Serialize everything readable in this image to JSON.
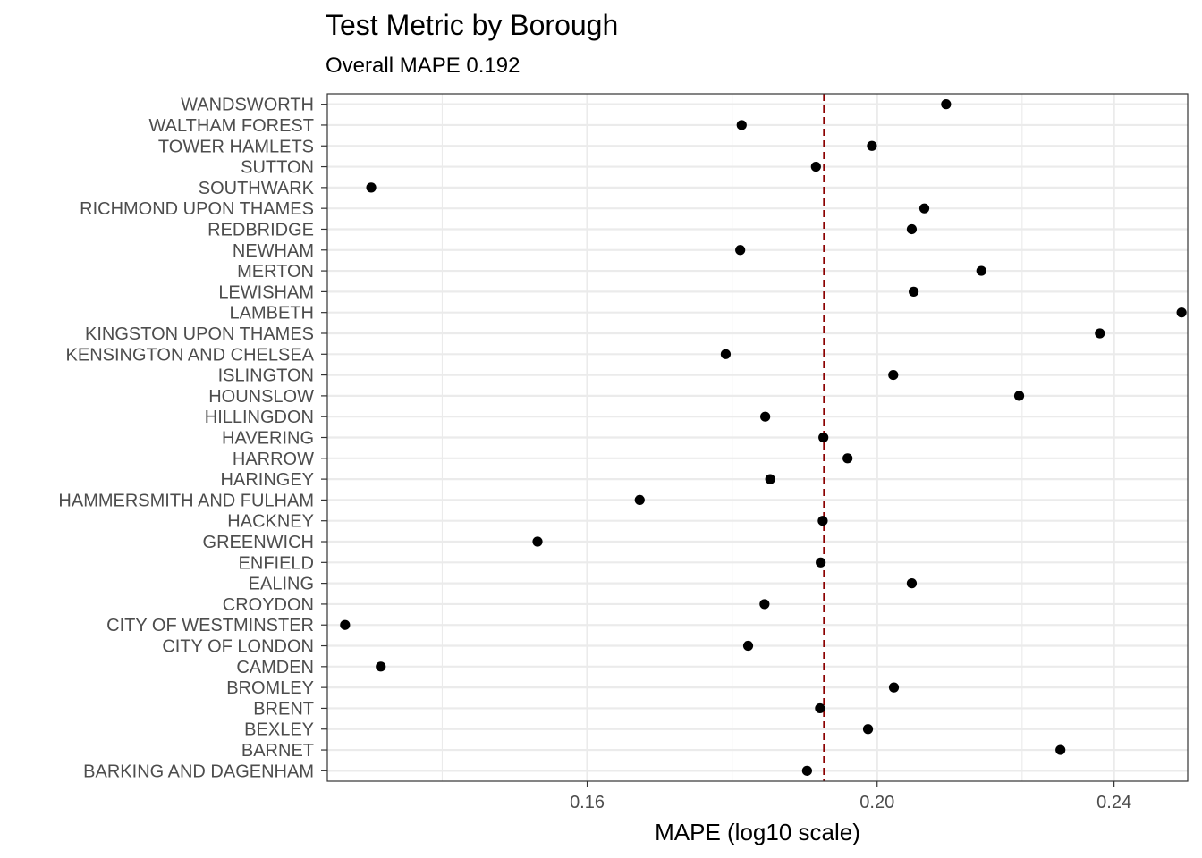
{
  "chart_data": {
    "type": "scatter",
    "title": "Test Metric by Borough",
    "subtitle": "Overall MAPE 0.192",
    "xlabel": "MAPE (log10 scale)",
    "ylabel": "",
    "x_scale": "log10",
    "xlim": [
      0.131,
      0.254
    ],
    "x_major_ticks": [
      0.16,
      0.2,
      0.24
    ],
    "x_tick_labels": [
      "0.16",
      "0.20",
      "0.24"
    ],
    "grid": true,
    "reference_line": {
      "value": 0.192,
      "style": "dashed",
      "color": "#8b0000"
    },
    "point_color": "#000000",
    "categories": [
      "BARKING AND DAGENHAM",
      "BARNET",
      "BEXLEY",
      "BRENT",
      "BROMLEY",
      "CAMDEN",
      "CITY OF LONDON",
      "CITY OF WESTMINSTER",
      "CROYDON",
      "EALING",
      "ENFIELD",
      "GREENWICH",
      "HACKNEY",
      "HAMMERSMITH AND FULHAM",
      "HARINGEY",
      "HARROW",
      "HAVERING",
      "HILLINGDON",
      "HOUNSLOW",
      "ISLINGTON",
      "KENSINGTON AND CHELSEA",
      "KINGSTON UPON THAMES",
      "LAMBETH",
      "LEWISHAM",
      "MERTON",
      "NEWHAM",
      "REDBRIDGE",
      "RICHMOND UPON THAMES",
      "SOUTHWARK",
      "SUTTON",
      "TOWER HAMLETS",
      "WALTHAM FOREST",
      "WANDSWORTH"
    ],
    "values": [
      0.1895,
      0.2303,
      0.1986,
      0.1914,
      0.2026,
      0.1365,
      0.1811,
      0.1328,
      0.1834,
      0.2054,
      0.1915,
      0.154,
      0.1918,
      0.1666,
      0.1842,
      0.1955,
      0.1919,
      0.1835,
      0.2231,
      0.2025,
      0.178,
      0.2374,
      0.2528,
      0.2057,
      0.2167,
      0.18,
      0.2054,
      0.2074,
      0.1355,
      0.1908,
      0.1992,
      0.1802,
      0.2109
    ]
  }
}
